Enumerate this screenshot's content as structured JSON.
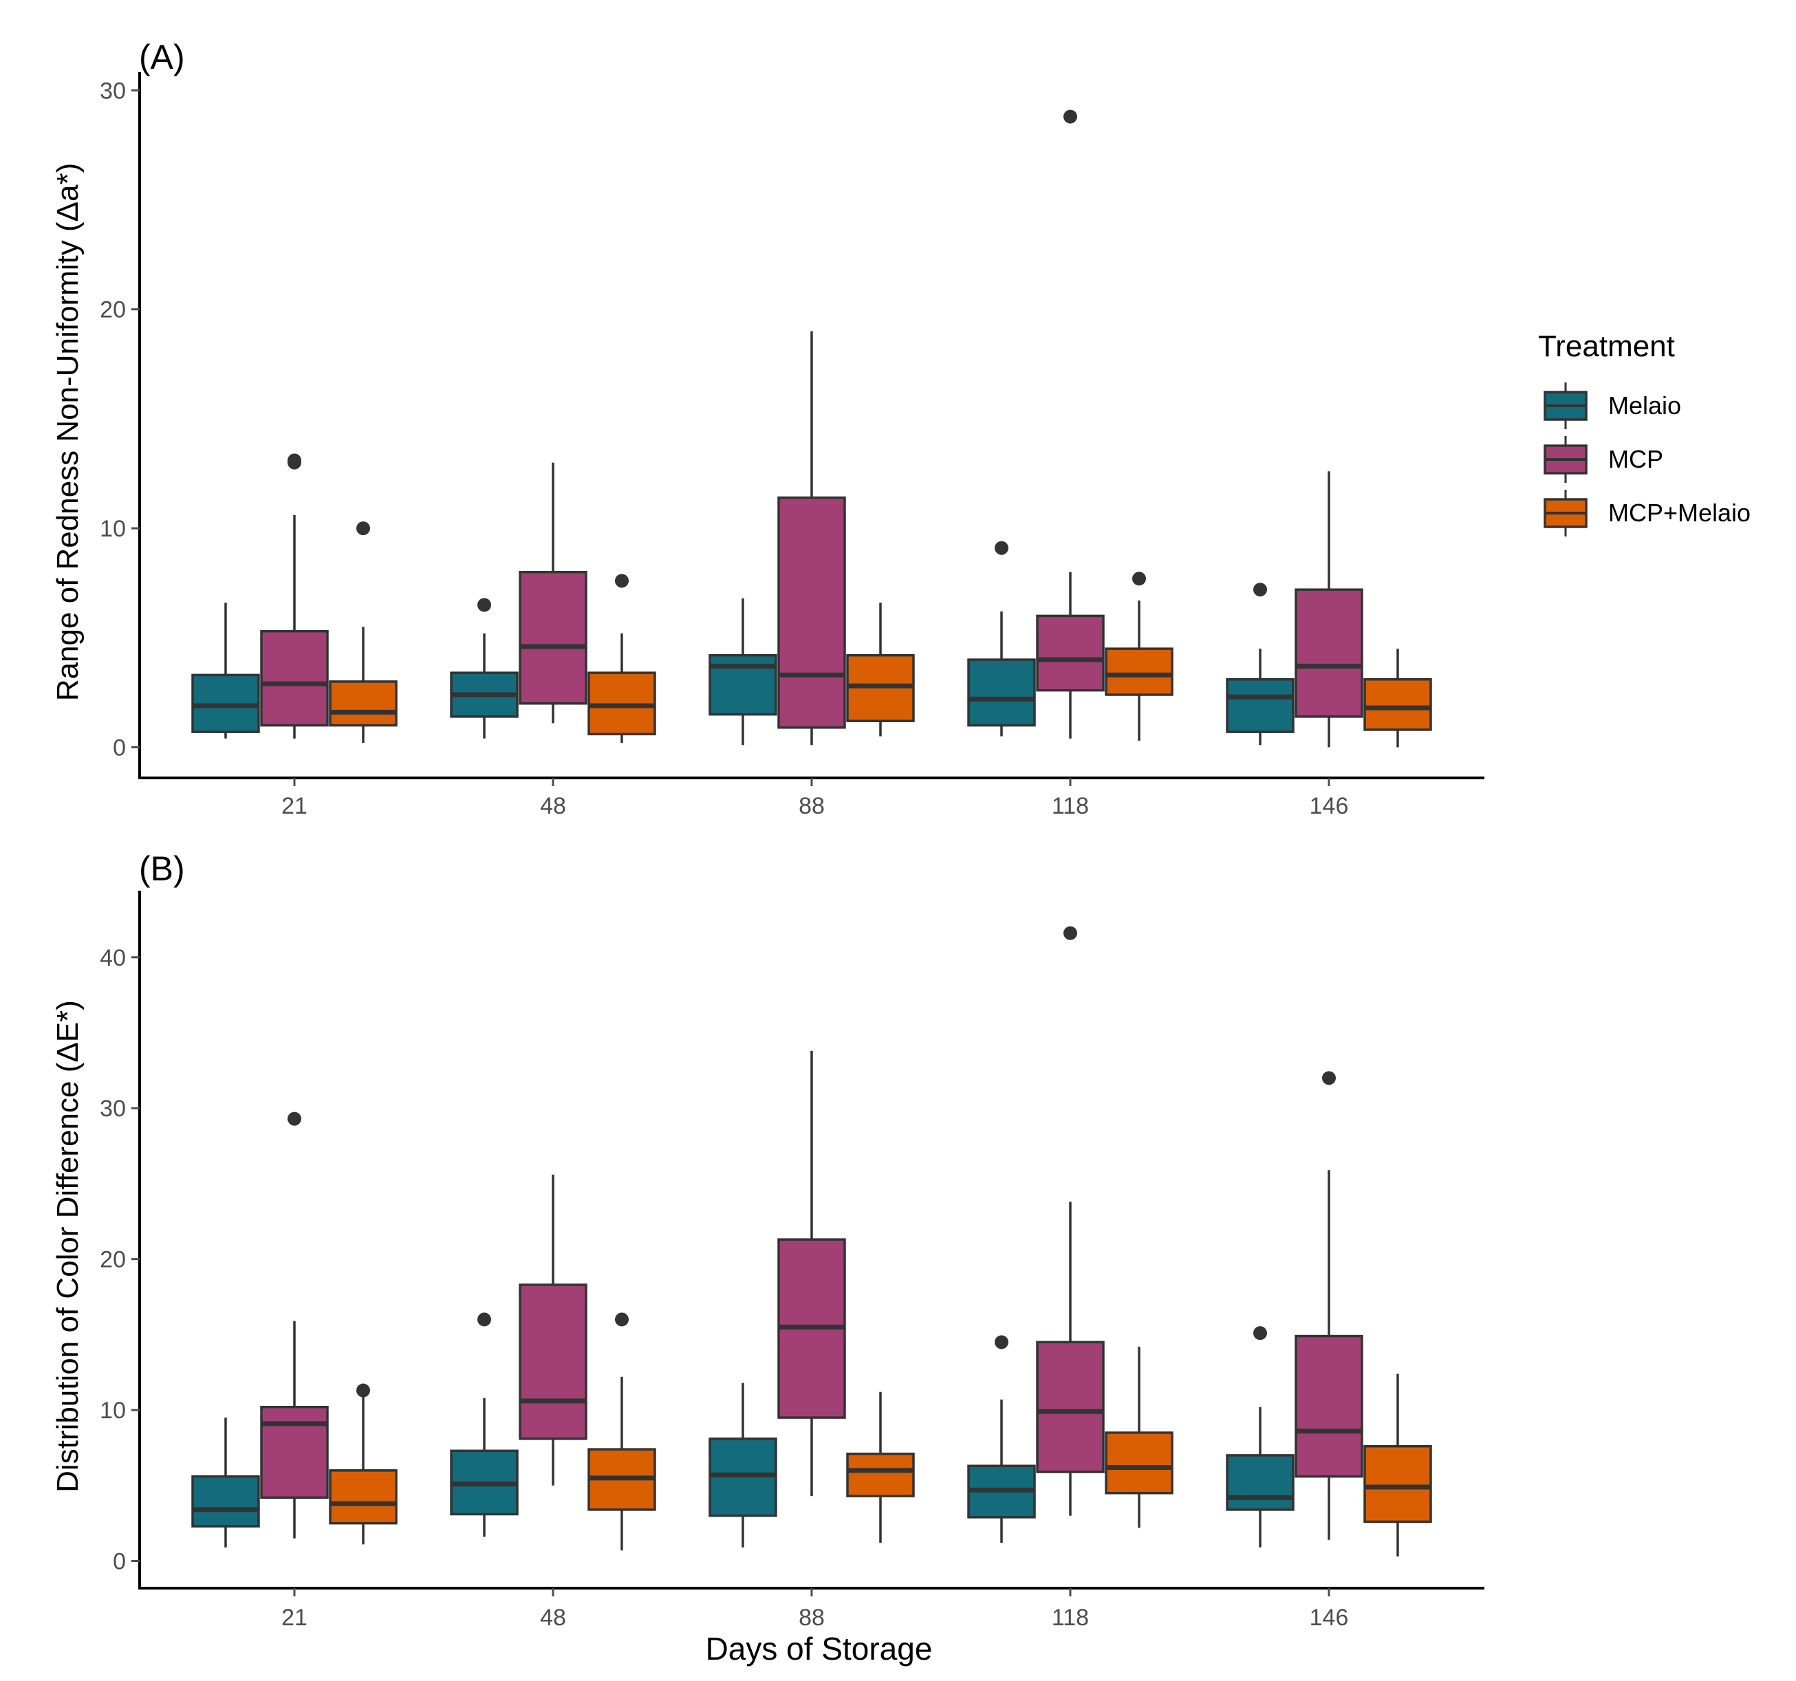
{
  "colors": {
    "Melaio": "#136b7b",
    "MCP": "#a24075",
    "MCP+Melaio": "#d95f02",
    "stroke": "#333333",
    "axis": "#000000",
    "tick_text": "#4d4d4d"
  },
  "legend": {
    "title": "Treatment",
    "items": [
      "Melaio",
      "MCP",
      "MCP+Melaio"
    ]
  },
  "chart_data": [
    {
      "type": "boxplot",
      "panel_label": "(A)",
      "ylabel": "Range of Redness Non-Uniformity (Δa*)",
      "xlabel": "",
      "ylim": [
        -1.4,
        30.2
      ],
      "yticks": [
        0,
        10,
        20,
        30
      ],
      "categories": [
        "21",
        "48",
        "88",
        "118",
        "146"
      ],
      "series": [
        {
          "name": "Melaio",
          "boxes": [
            {
              "min": 0.4,
              "q1": 0.7,
              "median": 1.9,
              "q3": 3.3,
              "max": 6.6,
              "outliers": []
            },
            {
              "min": 0.4,
              "q1": 1.4,
              "median": 2.4,
              "q3": 3.4,
              "max": 5.2,
              "outliers": [
                6.5
              ]
            },
            {
              "min": 0.1,
              "q1": 1.5,
              "median": 3.7,
              "q3": 4.2,
              "max": 6.8,
              "outliers": []
            },
            {
              "min": 0.5,
              "q1": 1.0,
              "median": 2.2,
              "q3": 4.0,
              "max": 6.2,
              "outliers": [
                9.1
              ]
            },
            {
              "min": 0.1,
              "q1": 0.7,
              "median": 2.3,
              "q3": 3.1,
              "max": 4.5,
              "outliers": [
                7.2
              ]
            }
          ]
        },
        {
          "name": "MCP",
          "boxes": [
            {
              "min": 0.4,
              "q1": 1.0,
              "median": 2.9,
              "q3": 5.3,
              "max": 10.6,
              "outliers": [
                13.0,
                13.1
              ]
            },
            {
              "min": 1.1,
              "q1": 2.0,
              "median": 4.6,
              "q3": 8.0,
              "max": 13.0,
              "outliers": []
            },
            {
              "min": 0.1,
              "q1": 0.9,
              "median": 3.3,
              "q3": 11.4,
              "max": 19.0,
              "outliers": []
            },
            {
              "min": 0.4,
              "q1": 2.6,
              "median": 4.0,
              "q3": 6.0,
              "max": 8.0,
              "outliers": [
                28.8
              ]
            },
            {
              "min": 0.0,
              "q1": 1.4,
              "median": 3.7,
              "q3": 7.2,
              "max": 12.6,
              "outliers": []
            }
          ]
        },
        {
          "name": "MCP+Melaio",
          "boxes": [
            {
              "min": 0.2,
              "q1": 1.0,
              "median": 1.6,
              "q3": 3.0,
              "max": 5.5,
              "outliers": [
                10.0
              ]
            },
            {
              "min": 0.2,
              "q1": 0.6,
              "median": 1.9,
              "q3": 3.4,
              "max": 5.2,
              "outliers": [
                7.6
              ]
            },
            {
              "min": 0.5,
              "q1": 1.2,
              "median": 2.8,
              "q3": 4.2,
              "max": 6.6,
              "outliers": []
            },
            {
              "min": 0.3,
              "q1": 2.4,
              "median": 3.3,
              "q3": 4.5,
              "max": 6.7,
              "outliers": [
                7.7
              ]
            },
            {
              "min": 0.0,
              "q1": 0.8,
              "median": 1.8,
              "q3": 3.1,
              "max": 4.5,
              "outliers": []
            }
          ]
        }
      ]
    },
    {
      "type": "boxplot",
      "panel_label": "(B)",
      "ylabel": "Distribution of Color Difference (ΔE*)",
      "xlabel": "Days of Storage",
      "ylim": [
        -1.8,
        43.5
      ],
      "yticks": [
        0,
        10,
        20,
        30,
        40
      ],
      "categories": [
        "21",
        "48",
        "88",
        "118",
        "146"
      ],
      "series": [
        {
          "name": "Melaio",
          "boxes": [
            {
              "min": 0.9,
              "q1": 2.3,
              "median": 3.4,
              "q3": 5.6,
              "max": 9.5,
              "outliers": []
            },
            {
              "min": 1.6,
              "q1": 3.1,
              "median": 5.1,
              "q3": 7.3,
              "max": 10.8,
              "outliers": [
                16.0
              ]
            },
            {
              "min": 0.9,
              "q1": 3.0,
              "median": 5.7,
              "q3": 8.1,
              "max": 11.8,
              "outliers": []
            },
            {
              "min": 1.2,
              "q1": 2.9,
              "median": 4.7,
              "q3": 6.3,
              "max": 10.7,
              "outliers": [
                14.5
              ]
            },
            {
              "min": 0.9,
              "q1": 3.4,
              "median": 4.2,
              "q3": 7.0,
              "max": 10.2,
              "outliers": [
                15.1
              ]
            }
          ]
        },
        {
          "name": "MCP",
          "boxes": [
            {
              "min": 1.5,
              "q1": 4.2,
              "median": 9.1,
              "q3": 10.2,
              "max": 15.9,
              "outliers": [
                29.3
              ]
            },
            {
              "min": 5.0,
              "q1": 8.1,
              "median": 10.6,
              "q3": 18.3,
              "max": 25.6,
              "outliers": []
            },
            {
              "min": 4.3,
              "q1": 9.5,
              "median": 15.5,
              "q3": 21.3,
              "max": 33.8,
              "outliers": []
            },
            {
              "min": 3.0,
              "q1": 5.9,
              "median": 9.9,
              "q3": 14.5,
              "max": 23.8,
              "outliers": [
                41.6
              ]
            },
            {
              "min": 1.4,
              "q1": 5.6,
              "median": 8.6,
              "q3": 14.9,
              "max": 25.9,
              "outliers": [
                32.0
              ]
            }
          ]
        },
        {
          "name": "MCP+Melaio",
          "boxes": [
            {
              "min": 1.1,
              "q1": 2.5,
              "median": 3.8,
              "q3": 6.0,
              "max": 11.0,
              "outliers": [
                11.3
              ]
            },
            {
              "min": 0.7,
              "q1": 3.4,
              "median": 5.5,
              "q3": 7.4,
              "max": 12.2,
              "outliers": [
                16.0
              ]
            },
            {
              "min": 1.2,
              "q1": 4.3,
              "median": 6.0,
              "q3": 7.1,
              "max": 11.2,
              "outliers": []
            },
            {
              "min": 2.2,
              "q1": 4.5,
              "median": 6.2,
              "q3": 8.5,
              "max": 14.2,
              "outliers": []
            },
            {
              "min": 0.3,
              "q1": 2.6,
              "median": 4.9,
              "q3": 7.6,
              "max": 12.4,
              "outliers": []
            }
          ]
        }
      ]
    }
  ]
}
